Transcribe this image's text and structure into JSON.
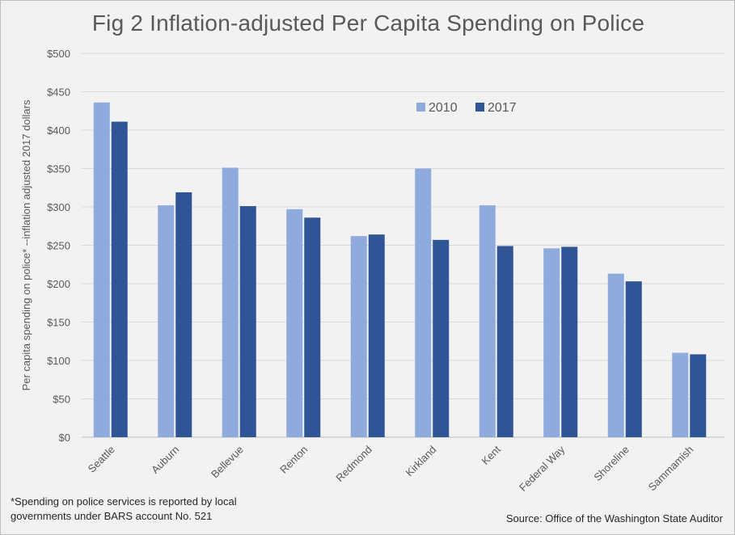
{
  "chart_data": {
    "type": "bar",
    "title": "Fig 2 Inflation-adjusted Per Capita Spending on Police",
    "ylabel": "Per capita spending on police* --inflation adjusted 2017 dollars",
    "xlabel": "",
    "categories": [
      "Seattle",
      "Auburn",
      "Bellevue",
      "Renton",
      "Redmond",
      "Kirkland",
      "Kent",
      "Federal Way",
      "Shoreline",
      "Sammamish"
    ],
    "series": [
      {
        "name": "2010",
        "color": "#8faadc",
        "values": [
          436,
          302,
          351,
          297,
          262,
          350,
          302,
          246,
          213,
          110
        ]
      },
      {
        "name": "2017",
        "color": "#2f5597",
        "values": [
          411,
          319,
          301,
          286,
          264,
          257,
          249,
          248,
          203,
          108
        ]
      }
    ],
    "ylim": [
      0,
      500
    ],
    "yticks": [
      0,
      50,
      100,
      150,
      200,
      250,
      300,
      350,
      400,
      450,
      500
    ],
    "ytick_labels": [
      "$0",
      "$50",
      "$100",
      "$150",
      "$200",
      "$250",
      "$300",
      "$350",
      "$400",
      "$450",
      "$500"
    ],
    "grid": true,
    "legend_position": "top-right"
  },
  "footnote": {
    "line1": "*Spending on police services is reported by local",
    "line2": "governments under BARS account No. 521"
  },
  "source": "Source: Office of the Washington State Auditor"
}
